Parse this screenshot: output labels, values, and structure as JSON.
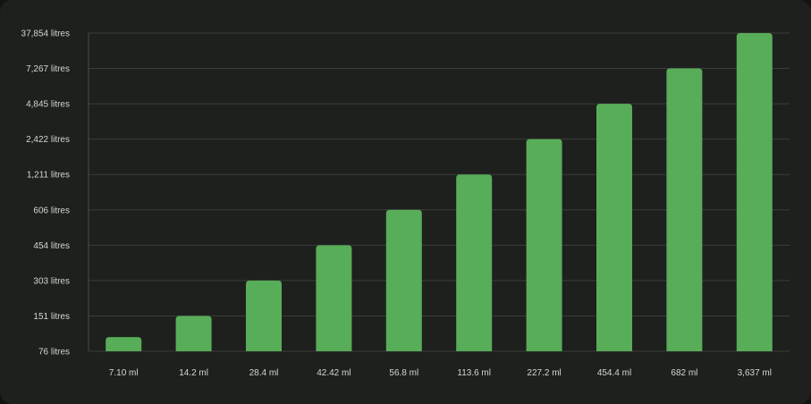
{
  "chart_data": {
    "type": "bar",
    "title": "",
    "xlabel": "",
    "ylabel": "",
    "grid": true,
    "y_tick_labels": [
      "76 litres",
      "151 litres",
      "303 litres",
      "454 litres",
      "606 litres",
      "1,211 litres",
      "2,422 litres",
      "4,845 litres",
      "7,267 litres",
      "37,854 litres"
    ],
    "categories": [
      "7.10 ml",
      "14.2 ml",
      "28.4 ml",
      "42.42 ml",
      "56.8 ml",
      "113.6 ml",
      "227.2 ml",
      "454.4 ml",
      "682 ml",
      "3,637 ml"
    ],
    "values": [
      0.4,
      1,
      2,
      3,
      4,
      5,
      6,
      7,
      8,
      9
    ],
    "value_scale": "position along the categorical y-axis (0 = 76 litres, 9 = 37,854 litres)",
    "colors": {
      "bar": "#58ad58",
      "grid": "#3a3d3a",
      "axis": "#4a4d4a",
      "text": "#d4d6d4",
      "background": "#1e201e"
    }
  }
}
